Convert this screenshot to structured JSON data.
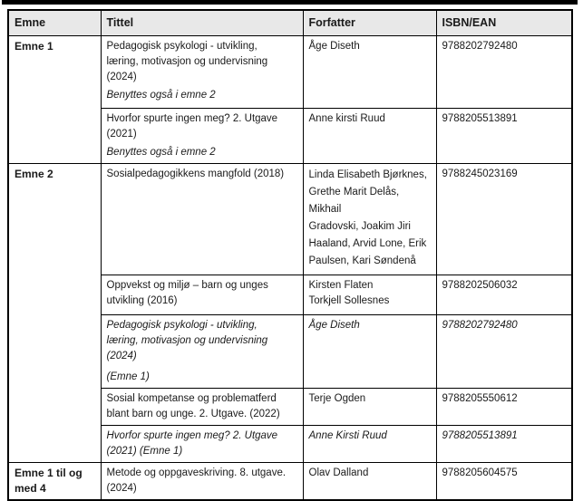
{
  "colors": {
    "top_bar": "#000000",
    "border": "#000000",
    "header_bg": "#e8e8e8",
    "text": "#1a1a1a"
  },
  "table": {
    "headers": {
      "emne": "Emne",
      "tittel": "Tittel",
      "forfatter": "Forfatter",
      "isbn": "ISBN/EAN"
    },
    "groups": [
      {
        "label": "Emne 1"
      },
      {
        "label": "Emne 2"
      },
      {
        "label": "Emne 1 til og med 4"
      }
    ],
    "rows": [
      {
        "title": "Pedagogisk psykologi - utvikling,\nlæring, motivasjon og undervisning\n(2024)",
        "note": "Benyttes også i emne 2",
        "authors": "Åge Diseth",
        "isbn": "9788202792480"
      },
      {
        "title": "Hvorfor spurte ingen meg? 2. Utgave\n(2021)",
        "note": "Benyttes også i emne 2",
        "authors": "Anne kirsti Ruud",
        "isbn": "9788205513891"
      },
      {
        "title": "Sosialpedagogikkens mangfold (2018)",
        "authors": "Linda Elisabeth Bjørknes,\nGrethe Marit Delås,\nMikhail\nGradovski, Joakim Jiri\nHaaland, Arvid Lone, Erik\nPaulsen, Kari Søndenå",
        "isbn": "9788245023169"
      },
      {
        "title": "Oppvekst og miljø – barn og unges\nutvikling (2016)",
        "authors": "Kirsten Flaten\nTorkjell Sollesnes",
        "isbn": "9788202506032"
      },
      {
        "title": "Pedagogisk psykologi - utvikling,\nlæring, motivasjon og undervisning\n(2024)",
        "note": "(Emne 1)",
        "authors": "Åge Diseth",
        "isbn": "9788202792480"
      },
      {
        "title": "Sosial kompetanse og problematferd\nblant barn og unge. 2. Utgave. (2022)",
        "authors": "Terje Ogden",
        "isbn": "9788205550612"
      },
      {
        "title": "Hvorfor spurte ingen meg? 2. Utgave\n(2021) (Emne 1)",
        "authors": "Anne Kirsti Ruud",
        "isbn": "9788205513891"
      },
      {
        "title": "Metode og oppgaveskriving. 8. utgave.\n(2024)",
        "authors": "Olav Dalland",
        "isbn": "9788205604575"
      }
    ]
  }
}
